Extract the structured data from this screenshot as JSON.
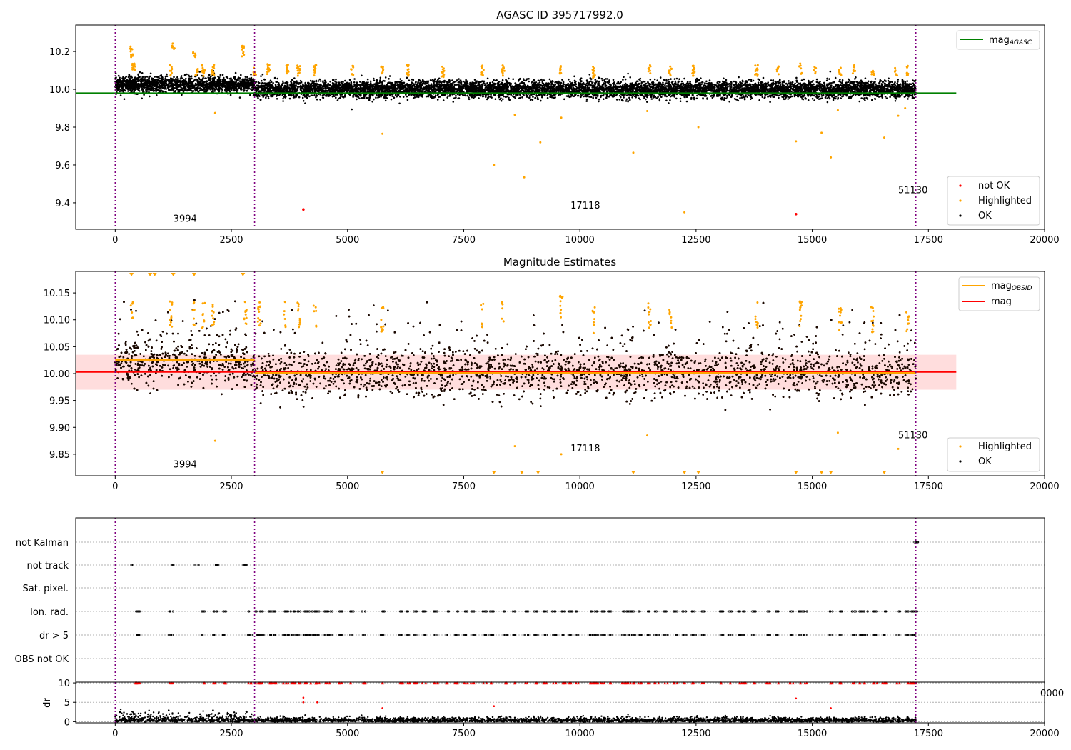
{
  "chart_data": [
    {
      "type": "scatter",
      "title": "AGASC ID 395717992.0",
      "xlim": [
        -850,
        20000
      ],
      "ylim": [
        9.26,
        10.34
      ],
      "x_ticks": [
        0,
        2500,
        5000,
        7500,
        10000,
        12500,
        15000,
        17500,
        20000
      ],
      "x_tick_labels": [
        "0",
        "2500",
        "5000",
        "7500",
        "10000",
        "12500",
        "15000",
        "17500",
        "20000"
      ],
      "y_ticks": [
        9.4,
        9.6,
        9.8,
        10.0,
        10.2
      ],
      "y_tick_labels": [
        "9.4",
        "9.6",
        "9.8",
        "10.0",
        "10.2"
      ],
      "obsid_boundaries": [
        0,
        3000,
        17230
      ],
      "annotations": [
        {
          "text": "3994",
          "x": 1250,
          "y": 9.3
        },
        {
          "text": "17118",
          "x": 9800,
          "y": 9.37
        },
        {
          "text": "51130",
          "x": 16850,
          "y": 9.45
        }
      ],
      "lines": [
        {
          "name": "mag",
          "subscript": "AGASC",
          "color": "#008000",
          "y": 9.98,
          "x": [
            -850,
            18100
          ]
        }
      ],
      "series": [
        {
          "name": "not OK",
          "color": "#ff0000",
          "points": [
            [
              4050,
              9.365
            ],
            [
              14650,
              9.34
            ]
          ]
        },
        {
          "name": "Highlighted",
          "color": "#ffa500"
        },
        {
          "name": "OK",
          "color": "#000000"
        }
      ],
      "legend_upper": [
        {
          "label": "mag",
          "subscript": "AGASC",
          "color": "#008000",
          "kind": "line"
        }
      ],
      "legend_lower": [
        {
          "label": "not OK",
          "color": "#ff0000",
          "kind": "dot"
        },
        {
          "label": "Highlighted",
          "color": "#ffa500",
          "kind": "dot"
        },
        {
          "label": "OK",
          "color": "#000000",
          "kind": "dot"
        }
      ]
    },
    {
      "type": "scatter",
      "title": "Magnitude Estimates",
      "xlim": [
        -850,
        20000
      ],
      "ylim": [
        9.81,
        10.19
      ],
      "x_ticks": [
        0,
        2500,
        5000,
        7500,
        10000,
        12500,
        15000,
        17500,
        20000
      ],
      "x_tick_labels": [
        "0",
        "2500",
        "5000",
        "7500",
        "10000",
        "12500",
        "15000",
        "17500",
        "20000"
      ],
      "y_ticks": [
        9.85,
        9.9,
        9.95,
        10.0,
        10.05,
        10.1,
        10.15
      ],
      "y_tick_labels": [
        "9.85",
        "9.90",
        "9.95",
        "10.00",
        "10.05",
        "10.10",
        "10.15"
      ],
      "obsid_boundaries": [
        0,
        3000,
        17230
      ],
      "annotations": [
        {
          "text": "3994",
          "x": 1250,
          "y": 9.825
        },
        {
          "text": "17118",
          "x": 9800,
          "y": 9.855
        },
        {
          "text": "51130",
          "x": 16850,
          "y": 9.88
        }
      ],
      "band": {
        "y_low": 9.97,
        "y_high": 10.035,
        "x": [
          -850,
          18100
        ],
        "color": "#ffdddd"
      },
      "lines": [
        {
          "name": "mag",
          "color": "#ff0000",
          "y": 10.003,
          "x": [
            -850,
            18100
          ]
        },
        {
          "name": "mag",
          "subscript": "OBSID",
          "color": "#ffa500",
          "segments": [
            [
              0,
              3000,
              10.025
            ],
            [
              3000,
              17230,
              10.001
            ]
          ]
        }
      ],
      "series": [
        {
          "name": "Highlighted",
          "color": "#ffa500"
        },
        {
          "name": "OK",
          "color": "#000000"
        }
      ],
      "legend_upper": [
        {
          "label": "mag",
          "subscript": "OBSID",
          "color": "#ffa500",
          "kind": "line"
        },
        {
          "label": "mag",
          "color": "#ff0000",
          "kind": "line"
        }
      ],
      "legend_lower": [
        {
          "label": "Highlighted",
          "color": "#ffa500",
          "kind": "dot"
        },
        {
          "label": "OK",
          "color": "#000000",
          "kind": "dot"
        }
      ]
    },
    {
      "type": "scatter",
      "title": "",
      "xlim": [
        -850,
        20000
      ],
      "obsid_boundaries": [
        0,
        3000,
        17230
      ],
      "flag_rows": [
        "not Kalman",
        "not track",
        "Sat. pixel.",
        "Ion. rad.",
        "dr > 5",
        "OBS not OK"
      ],
      "flag_points": {
        "not Kalman": [
          17230
        ],
        "not track": [
          350,
          1250,
          1750,
          2200,
          2800
        ],
        "Sat. pixel.": [],
        "Ion. rad.": [
          470,
          490,
          1200,
          1900,
          2150,
          2350,
          2900,
          3050,
          3150,
          3350,
          3450,
          3650,
          3750,
          3850,
          3950,
          4100,
          4200,
          4300,
          4350,
          4550,
          4650,
          4850,
          5100,
          5350,
          5750,
          6150,
          6300,
          6450,
          6650,
          6900,
          7150,
          7350,
          7550,
          7700,
          7950,
          8100,
          8400,
          8600,
          8850,
          9050,
          9250,
          9450,
          9650,
          9800,
          9950,
          10250,
          10350,
          10500,
          10650,
          10950,
          11050,
          11150,
          11300,
          11500,
          11650,
          11850,
          12050,
          12250,
          12450,
          12650,
          13050,
          13250,
          13450,
          13550,
          13750,
          14050,
          14250,
          14550,
          14750,
          14850,
          15400,
          15600,
          15900,
          16050,
          16150,
          16350,
          16550,
          16850,
          17050,
          17150,
          17220
        ],
        "dr > 5": [
          470,
          490,
          1200,
          1900,
          2150,
          2350,
          2900,
          3050,
          3150,
          3350,
          3450,
          3650,
          3750,
          3850,
          3950,
          4100,
          4200,
          4300,
          4350,
          4550,
          4650,
          4850,
          5100,
          5350,
          5750,
          6150,
          6300,
          6450,
          6650,
          6900,
          7150,
          7350,
          7550,
          7700,
          7950,
          8100,
          8400,
          8600,
          8850,
          9050,
          9250,
          9450,
          9650,
          9800,
          9950,
          10250,
          10350,
          10500,
          10650,
          10950,
          11050,
          11150,
          11300,
          11500,
          11650,
          11850,
          12050,
          12250,
          12450,
          12650,
          13050,
          13250,
          13450,
          13550,
          13750,
          14050,
          14250,
          14550,
          14750,
          14850,
          15400,
          15600,
          15900,
          16050,
          16150,
          16350,
          16550,
          16850,
          17050,
          17150,
          17220
        ],
        "OBS not OK": []
      }
    },
    {
      "type": "scatter",
      "title": "",
      "xlim": [
        -850,
        20000
      ],
      "ylim": [
        -0.3,
        10.2
      ],
      "ylabel": "dr",
      "x_ticks": [
        0,
        2500,
        5000,
        7500,
        10000,
        12500,
        15000,
        17500,
        20000
      ],
      "x_tick_labels": [
        "0",
        "2500",
        "5000",
        "7500",
        "10000",
        "12500",
        "15000",
        "17500",
        "20000"
      ],
      "y_ticks": [
        0,
        5,
        10
      ],
      "y_tick_labels": [
        "0",
        "5",
        "10"
      ],
      "obsid_boundaries": [
        0,
        3000,
        17230
      ],
      "capped_markers_y": 10,
      "outliers": [
        [
          4050,
          6.2
        ],
        [
          4050,
          5.0
        ],
        [
          4350,
          5.0
        ],
        [
          5750,
          3.5
        ],
        [
          8150,
          4.0
        ],
        [
          14650,
          6.0
        ],
        [
          15400,
          3.5
        ]
      ]
    }
  ],
  "overlap_tick_fragment": "0000"
}
